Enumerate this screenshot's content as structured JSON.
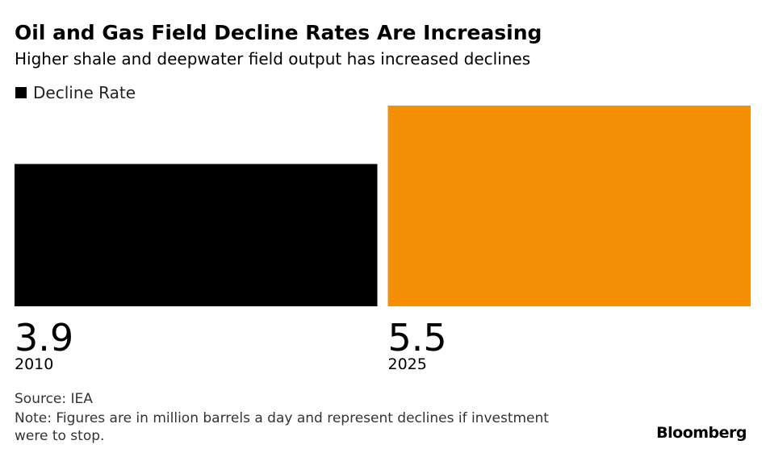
{
  "header": {
    "title": "Oil and Gas Field Decline Rates Are Increasing",
    "subtitle": "Higher shale and deepwater field output has increased declines"
  },
  "legend": {
    "label": "Decline Rate",
    "color": "#000000"
  },
  "chart_data": {
    "type": "bar",
    "title": "Oil and Gas Field Decline Rates Are Increasing",
    "subtitle": "Higher shale and deepwater field output has increased declines",
    "categories": [
      "2010",
      "2025"
    ],
    "series": [
      {
        "name": "Decline Rate",
        "values": [
          3.9,
          5.5
        ]
      }
    ],
    "value_labels": [
      "3.9",
      "5.5"
    ],
    "bar_colors": [
      "#000000",
      "#f58f05"
    ],
    "ylim": [
      0,
      5.5
    ],
    "grid": false,
    "legend_position": "top-left"
  },
  "footer": {
    "source": "Source: IEA",
    "note": "Note: Figures are in million barrels a day and represent declines if investment were to stop.",
    "brand": "Bloomberg"
  }
}
